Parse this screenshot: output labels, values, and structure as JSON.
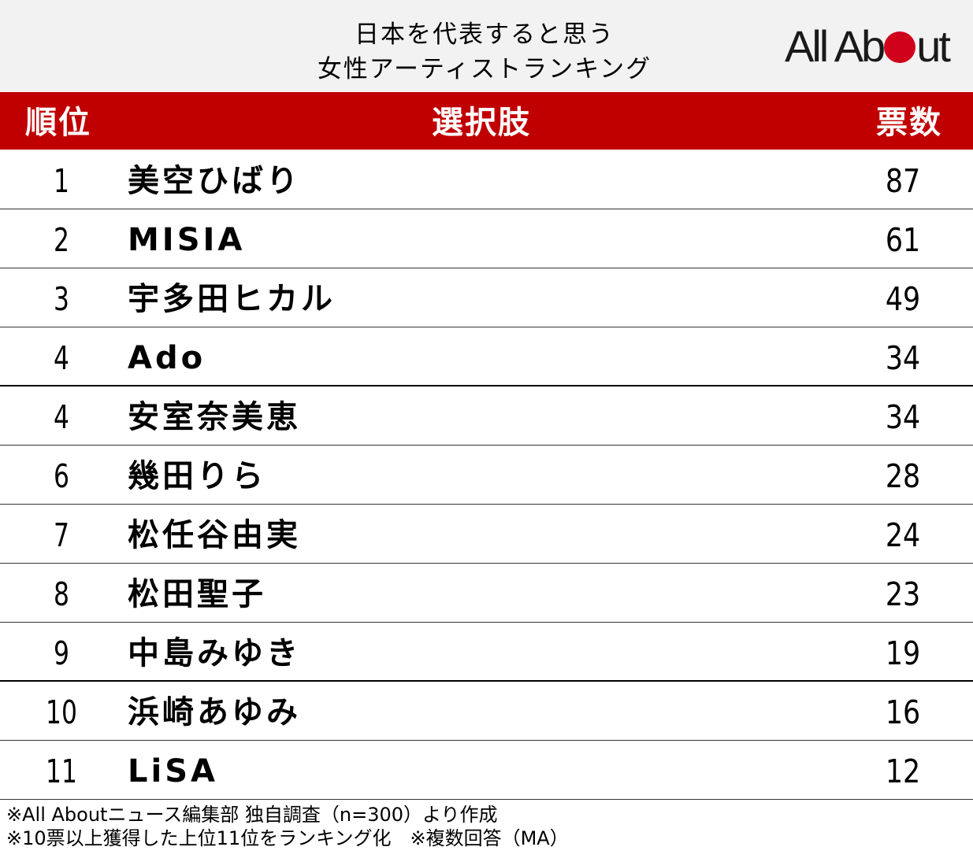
{
  "title": {
    "line1": "日本を代表すると思う",
    "line2": "女性アーティストランキング"
  },
  "logo": {
    "part1": "All Ab",
    "part2": "ut",
    "brand_color": "#d0021b"
  },
  "table": {
    "headers": {
      "rank": "順位",
      "choice": "選択肢",
      "votes": "票数"
    },
    "header_color": "#c00000",
    "rows": [
      {
        "rank": "1",
        "name": "美空ひばり",
        "votes": "87"
      },
      {
        "rank": "2",
        "name": "MISIA",
        "votes": "61"
      },
      {
        "rank": "3",
        "name": "宇多田ヒカル",
        "votes": "49"
      },
      {
        "rank": "4",
        "name": "Ado",
        "votes": "34"
      },
      {
        "rank": "4",
        "name": "安室奈美恵",
        "votes": "34"
      },
      {
        "rank": "6",
        "name": "幾田りら",
        "votes": "28"
      },
      {
        "rank": "7",
        "name": "松任谷由実",
        "votes": "24"
      },
      {
        "rank": "8",
        "name": "松田聖子",
        "votes": "23"
      },
      {
        "rank": "9",
        "name": "中島みゆき",
        "votes": "19"
      },
      {
        "rank": "10",
        "name": "浜崎あゆみ",
        "votes": "16"
      },
      {
        "rank": "11",
        "name": "LiSA",
        "votes": "12"
      }
    ]
  },
  "footer": {
    "note1": "※All Aboutニュース編集部 独自調査（n=300）より作成",
    "note2": "※10票以上獲得した上位11位をランキング化　※複数回答（MA）"
  }
}
